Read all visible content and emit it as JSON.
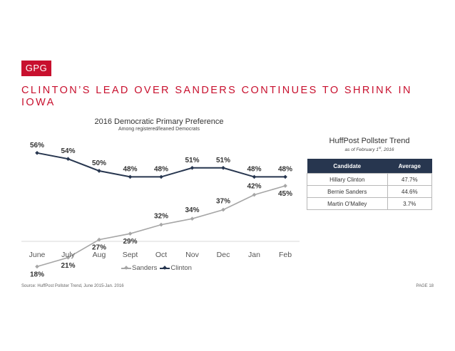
{
  "logo": "GPG",
  "headline": "CLINTON’S LEAD OVER SANDERS CONTINUES TO SHRINK IN IOWA",
  "chart_data": {
    "type": "line",
    "title": "2016 Democratic Primary Preference",
    "subtitle": "Among registered/leaned Democrats",
    "categories": [
      "June",
      "July",
      "Aug",
      "Sept",
      "Oct",
      "Nov",
      "Dec",
      "Jan",
      "Feb"
    ],
    "ylim": [
      0,
      70
    ],
    "grid": false,
    "legend": "bottom",
    "series": [
      {
        "name": "Sanders",
        "color": "#a6a6a6",
        "values": [
          18,
          21,
          27,
          29,
          32,
          34,
          37,
          42,
          45
        ],
        "labels": [
          "18%",
          "21%",
          "27%",
          "29%",
          "32%",
          "34%",
          "37%",
          "42%",
          "45%"
        ]
      },
      {
        "name": "Clinton",
        "color": "#27364f",
        "values": [
          56,
          54,
          50,
          48,
          48,
          51,
          51,
          48,
          48
        ],
        "labels": [
          "56%",
          "54%",
          "50%",
          "48%",
          "48%",
          "51%",
          "51%",
          "48%",
          "48%"
        ]
      }
    ]
  },
  "pollster": {
    "title": "HuffPost Pollster Trend",
    "subtitle_prefix": "as of February 1",
    "subtitle_sup": "st",
    "subtitle_suffix": ", 2016",
    "columns": [
      "Candidate",
      "Average"
    ],
    "rows": [
      [
        "Hillary Clinton",
        "47.7%"
      ],
      [
        "Bernie Sanders",
        "44.6%"
      ],
      [
        "Martin O'Malley",
        "3.7%"
      ]
    ]
  },
  "footer": {
    "source": "Source: HuffPost Pollster Trend, June 2015-Jan. 2016",
    "page": "PAGE 18"
  },
  "colors": {
    "accent": "#c8102e",
    "navy": "#27364f",
    "gray_series": "#a6a6a6"
  }
}
